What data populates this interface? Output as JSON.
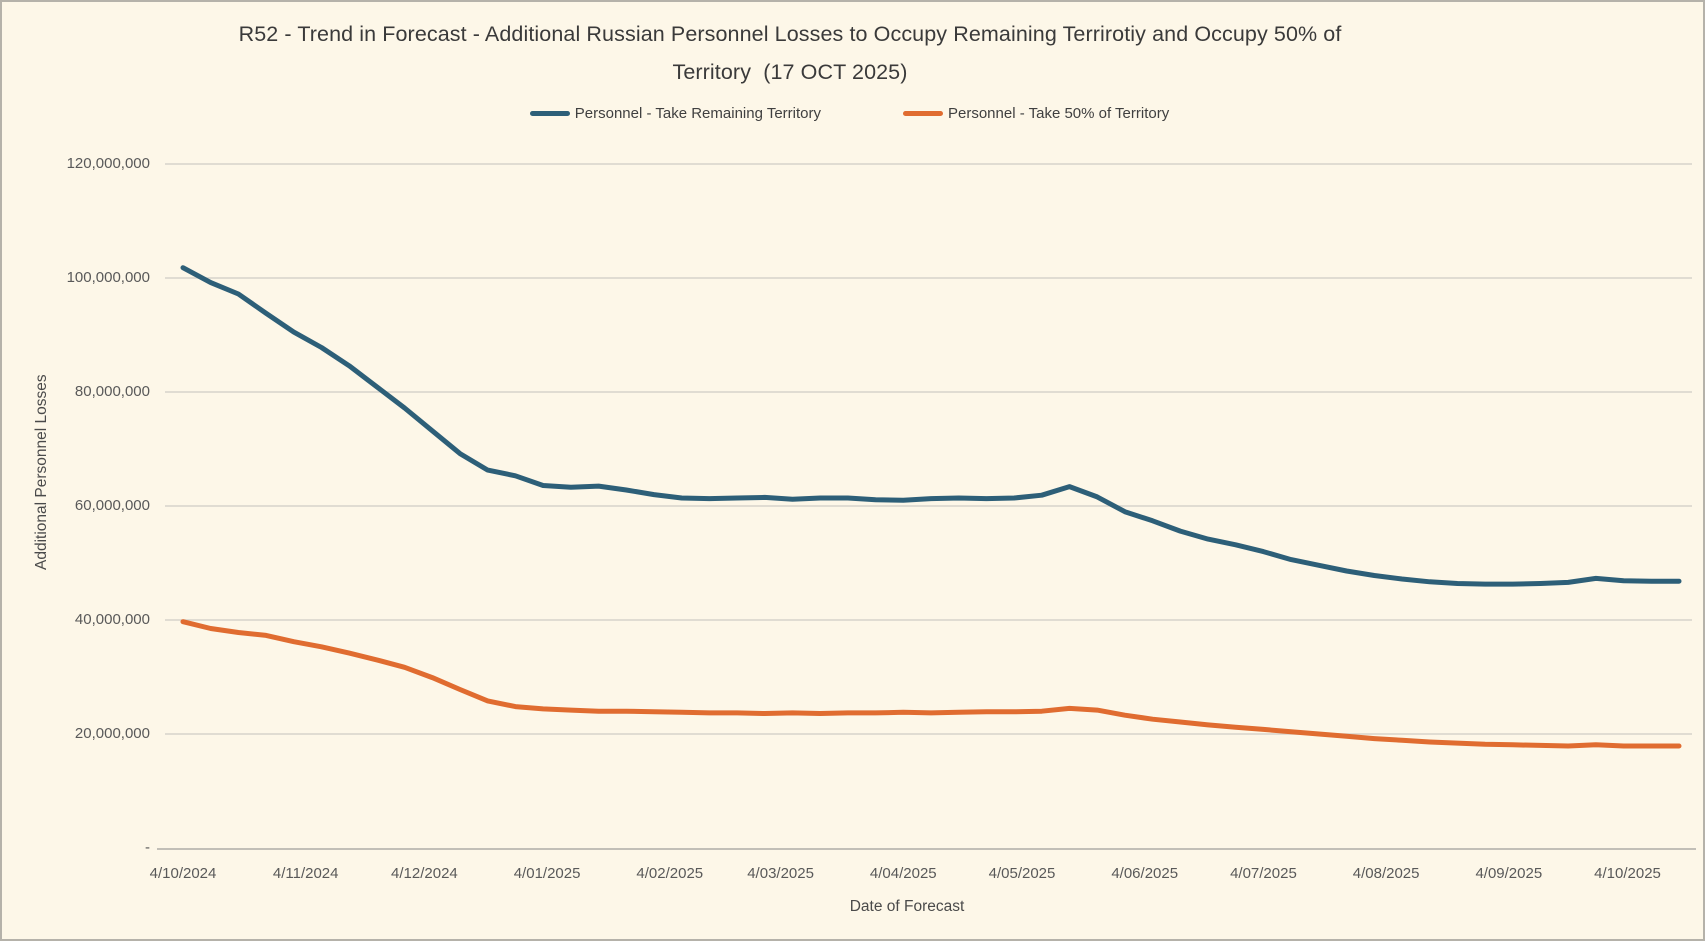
{
  "chart_data": {
    "type": "line",
    "title_lines": [
      "R52 - Trend in Forecast - Additional Russian Personnel Losses to Occupy Remaining Terrirotiy and Occupy 50% of",
      "Territory  (17 OCT 2025)"
    ],
    "xlabel": "Date of Forecast",
    "ylabel": "Additional Personnel Losses",
    "ylim": [
      0,
      120000000
    ],
    "grid": "horizontal-only",
    "legend_position": "top-center",
    "colors": {
      "background": "#FDF7E8",
      "gridline": "#D7D3CA",
      "axis_line": "#C2BFB7",
      "tick_text": "#595959",
      "title_text": "#3a3a3a"
    },
    "y_ticks": [
      {
        "label": "120,000,000",
        "value": 120000000
      },
      {
        "label": "100,000,000",
        "value": 100000000
      },
      {
        "label": "80,000,000",
        "value": 80000000
      },
      {
        "label": "60,000,000",
        "value": 60000000
      },
      {
        "label": "40,000,000",
        "value": 40000000
      },
      {
        "label": "20,000,000",
        "value": 20000000
      },
      {
        "label": "-",
        "value": 0
      }
    ],
    "x_ticks": [
      {
        "label": "4/10/2024",
        "week_offset": 0
      },
      {
        "label": "4/11/2024",
        "week_offset": 4.4286
      },
      {
        "label": "4/12/2024",
        "week_offset": 8.7143
      },
      {
        "label": "4/01/2025",
        "week_offset": 13.1429
      },
      {
        "label": "4/02/2025",
        "week_offset": 17.5714
      },
      {
        "label": "4/03/2025",
        "week_offset": 21.5714
      },
      {
        "label": "4/04/2025",
        "week_offset": 26.0
      },
      {
        "label": "4/05/2025",
        "week_offset": 30.2857
      },
      {
        "label": "4/06/2025",
        "week_offset": 34.7143
      },
      {
        "label": "4/07/2025",
        "week_offset": 39.0
      },
      {
        "label": "4/08/2025",
        "week_offset": 43.4286
      },
      {
        "label": "4/09/2025",
        "week_offset": 47.8571
      },
      {
        "label": "4/10/2025",
        "week_offset": 52.1429
      }
    ],
    "x_cadence": "weekly",
    "x_total_weeks": 54,
    "legend": [
      {
        "label": "Personnel - Take Remaining Territory",
        "color": "#2D5F78"
      },
      {
        "label": "Personnel - Take 50% of Territory",
        "color": "#E06C30"
      }
    ],
    "series": [
      {
        "name": "Personnel - Take Remaining Territory",
        "color": "#2D5F78",
        "values": [
          101800000,
          99200000,
          97200000,
          93800000,
          90500000,
          87800000,
          84600000,
          80900000,
          77200000,
          73200000,
          69200000,
          66300000,
          65300000,
          63600000,
          63300000,
          63500000,
          62800000,
          62000000,
          61400000,
          61300000,
          61400000,
          61500000,
          61200000,
          61400000,
          61400000,
          61100000,
          61000000,
          61300000,
          61400000,
          61300000,
          61400000,
          61900000,
          63400000,
          61600000,
          59000000,
          57400000,
          55600000,
          54200000,
          53200000,
          52000000,
          50600000,
          49600000,
          48600000,
          47800000,
          47200000,
          46700000,
          46400000,
          46300000,
          46300000,
          46400000,
          46600000,
          47300000,
          46900000,
          46800000,
          46800000
        ]
      },
      {
        "name": "Personnel - Take 50% of Territory",
        "color": "#E06C30",
        "values": [
          39700000,
          38500000,
          37800000,
          37300000,
          36200000,
          35300000,
          34200000,
          33000000,
          31700000,
          29900000,
          27800000,
          25800000,
          24800000,
          24400000,
          24200000,
          24000000,
          24000000,
          23900000,
          23800000,
          23700000,
          23700000,
          23600000,
          23700000,
          23600000,
          23700000,
          23700000,
          23800000,
          23700000,
          23800000,
          23900000,
          23900000,
          24000000,
          24500000,
          24200000,
          23300000,
          22600000,
          22100000,
          21600000,
          21200000,
          20800000,
          20400000,
          20000000,
          19600000,
          19200000,
          18900000,
          18600000,
          18400000,
          18200000,
          18100000,
          18000000,
          17900000,
          18100000,
          17900000,
          17900000,
          17900000
        ]
      }
    ]
  }
}
